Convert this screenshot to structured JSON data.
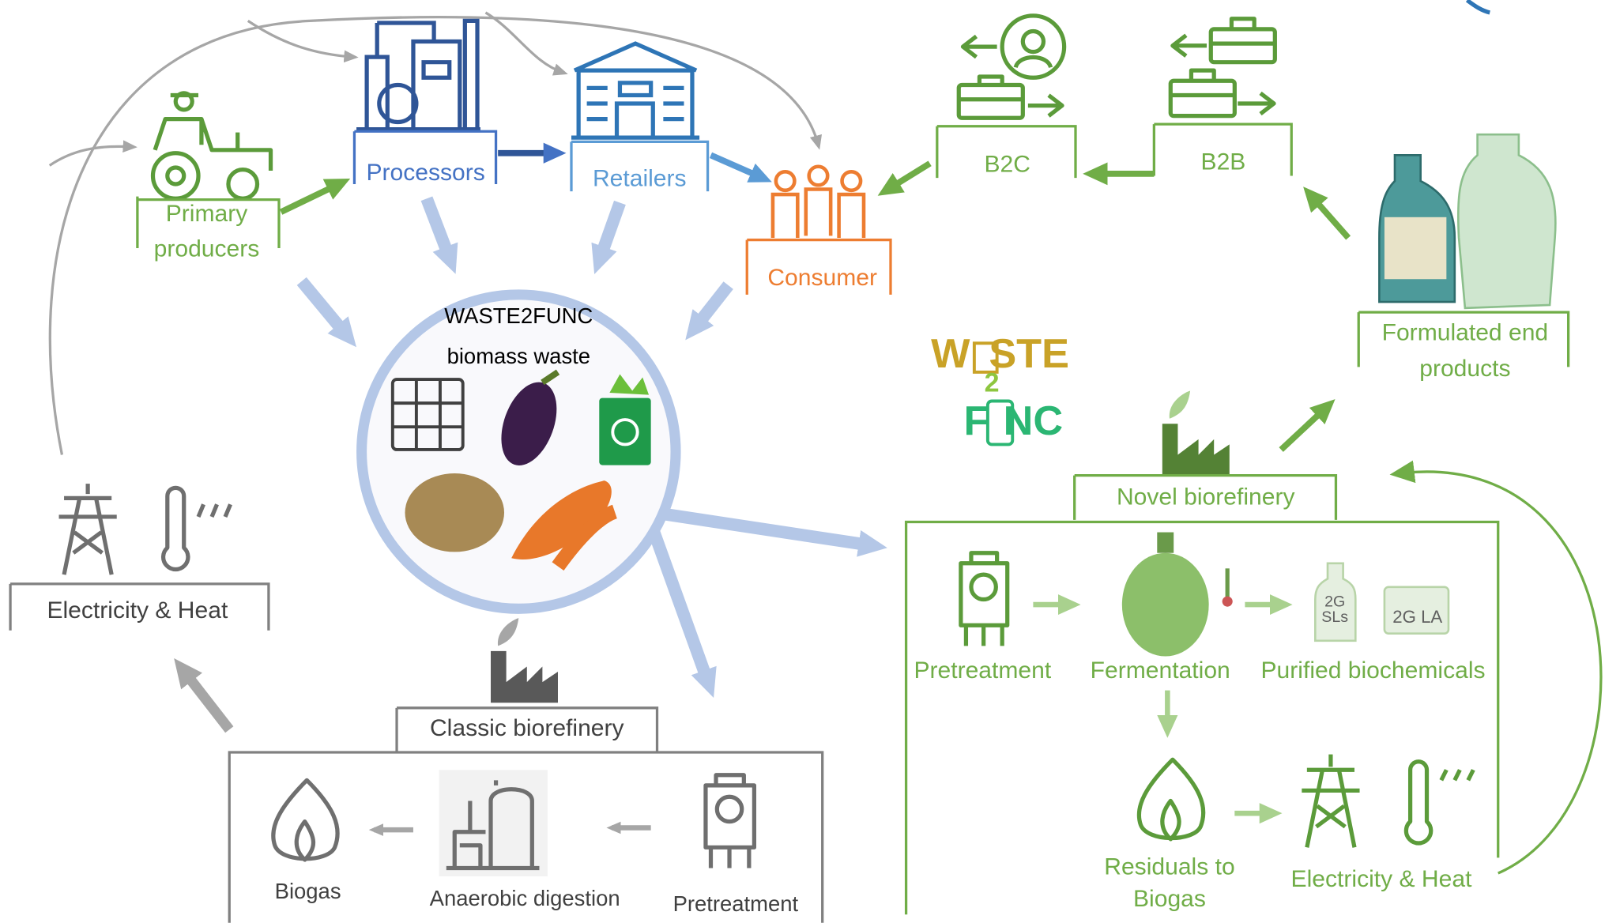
{
  "supply_chain": {
    "primary_producers": [
      "Primary",
      "producers"
    ],
    "processors": "Processors",
    "retailers": "Retailers",
    "consumer": "Consumer",
    "b2c": "B2C",
    "b2b": "B2B",
    "formulated_end_products": [
      "Formulated end",
      "products"
    ]
  },
  "waste": {
    "title": "WASTE2FUNC",
    "subtitle": "biomass waste"
  },
  "logo": {
    "parts": [
      "W",
      "STE",
      "2",
      "F",
      "NC"
    ]
  },
  "novel_biorefinery": {
    "title": "Novel biorefinery",
    "steps": {
      "pretreatment": "Pretreatment",
      "fermentation": "Fermentation",
      "purified_biochemicals": "Purified biochemicals",
      "products": [
        [
          "2G",
          "SLs"
        ],
        "2G LA"
      ],
      "residuals": [
        "Residuals to",
        "Biogas"
      ],
      "energy": "Electricity & Heat"
    }
  },
  "classic_biorefinery": {
    "title": "Classic biorefinery",
    "steps": {
      "biogas": "Biogas",
      "anaerobic_digestion": "Anaerobic digestion",
      "pretreatment": "Pretreatment"
    }
  },
  "energy_left": "Electricity & Heat"
}
